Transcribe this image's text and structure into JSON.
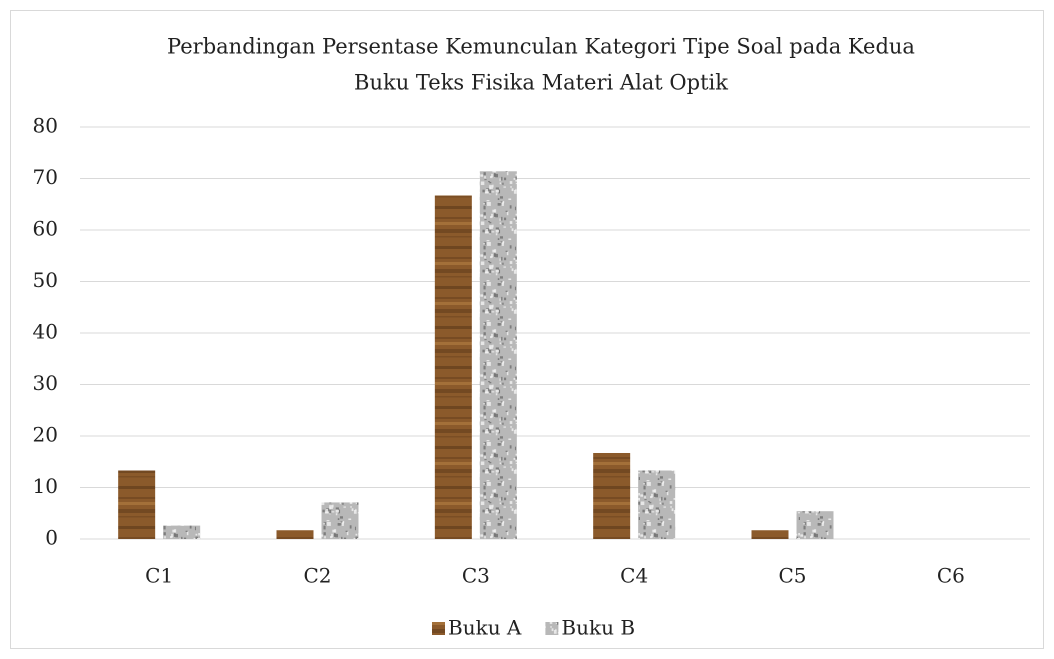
{
  "chart_data": {
    "type": "bar",
    "title": [
      "Perbandingan Persentase Kemunculan Kategori Tipe Soal pada Kedua",
      "Buku Teks Fisika Materi Alat Optik"
    ],
    "categories": [
      "C1",
      "C2",
      "C3",
      "C4",
      "C5",
      "C6"
    ],
    "series": [
      {
        "name": "Buku A",
        "color": "#8b5a2b",
        "values": [
          13.3,
          1.7,
          66.7,
          16.7,
          1.7,
          0
        ]
      },
      {
        "name": "Buku B",
        "color": "#b8b8b8",
        "values": [
          2.6,
          7.1,
          71.4,
          13.3,
          5.4,
          0
        ]
      }
    ],
    "ylim": [
      0,
      80
    ],
    "yticks": [
      0,
      10,
      20,
      30,
      40,
      50,
      60,
      70,
      80
    ],
    "grid": true,
    "legend": "bottom"
  }
}
